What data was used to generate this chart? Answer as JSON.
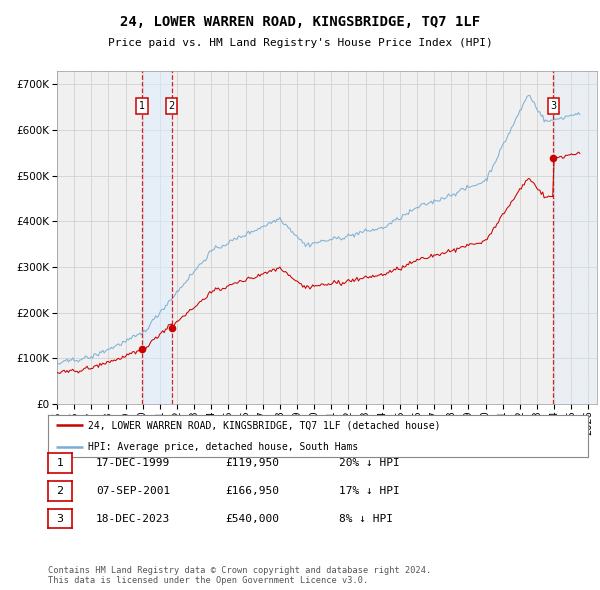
{
  "title": "24, LOWER WARREN ROAD, KINGSBRIDGE, TQ7 1LF",
  "subtitle": "Price paid vs. HM Land Registry's House Price Index (HPI)",
  "hpi_label": "HPI: Average price, detached house, South Hams",
  "price_label": "24, LOWER WARREN ROAD, KINGSBRIDGE, TQ7 1LF (detached house)",
  "ytick_values": [
    0,
    100000,
    200000,
    300000,
    400000,
    500000,
    600000,
    700000
  ],
  "ylim": [
    0,
    730000
  ],
  "xlim_start": 1995.0,
  "xlim_end": 2026.5,
  "hpi_color": "#7aaed4",
  "price_color": "#cc0000",
  "dashed_line_color": "#cc0000",
  "shade_color": "#ddeeff",
  "transactions": [
    {
      "date_num": 1999.96,
      "price": 119950,
      "label": "1",
      "date_str": "17-DEC-1999",
      "pct": "20% ↓ HPI"
    },
    {
      "date_num": 2001.68,
      "price": 166950,
      "label": "2",
      "date_str": "07-SEP-2001",
      "pct": "17% ↓ HPI"
    },
    {
      "date_num": 2023.96,
      "price": 540000,
      "label": "3",
      "date_str": "18-DEC-2023",
      "pct": "8% ↓ HPI"
    }
  ],
  "footnote1": "Contains HM Land Registry data © Crown copyright and database right 2024.",
  "footnote2": "This data is licensed under the Open Government Licence v3.0.",
  "background_color": "#ffffff",
  "plot_bg_color": "#f0f0f0"
}
